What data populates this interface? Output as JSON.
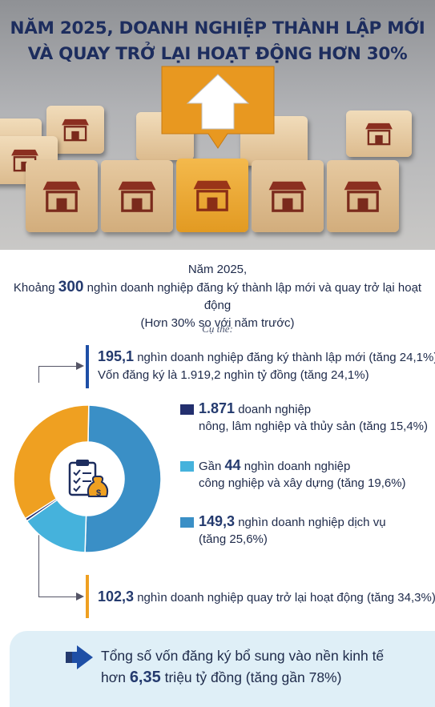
{
  "headline": {
    "line1": "NĂM 2025, DOANH NGHIỆP THÀNH LẬP MỚI",
    "line2": "VÀ QUAY TRỞ LẠI HOẠT ĐỘNG HƠN 30%"
  },
  "intro": {
    "line1": "Năm 2025,",
    "line2_prefix": "Khoảng ",
    "line2_number": "300",
    "line2_suffix": " nghìn doanh nghiệp đăng ký thành lập mới và quay trở lại hoạt động",
    "line3": "(Hơn 30% so với năm trước)",
    "detail_label": "Cụ thể:"
  },
  "new_enterprises": {
    "number": "195,1",
    "text": " nghìn doanh nghiệp đăng ký thành lập mới (tăng 24,1%)",
    "capital": "Vốn đăng ký là 1.919,2 nghìn tỷ đồng (tăng 24,1%)"
  },
  "returning": {
    "number": "102,3",
    "text": " nghìn doanh nghiệp quay trở lại hoạt động (tăng 34,3%)"
  },
  "footer": {
    "line1": "Tổng số vốn đăng ký bổ sung vào nền kinh tế",
    "line2_prefix": "hơn ",
    "line2_number": "6,35",
    "line2_suffix": " triệu tỷ đồng (tăng gần 78%)"
  },
  "chart_data": {
    "type": "pie",
    "unit": "nghìn doanh nghiệp",
    "total": 297.4,
    "series": [
      {
        "group": "new",
        "color": "#1e4fa6",
        "slices": [
          {
            "name": "agriculture",
            "value": 1.871,
            "color": "#232f6e",
            "line1_number": "1.871",
            "line1_text": " doanh nghiệp",
            "line2": "nông, lâm nghiệp và thủy sản (tăng 15,4%)"
          },
          {
            "name": "industry",
            "value": 44,
            "color": "#45b2dc",
            "line1_prefix": "Gần ",
            "line1_number": "44",
            "line1_text": " nghìn doanh nghiệp",
            "line2": "công nghiệp và xây dựng (tăng 19,6%)"
          },
          {
            "name": "services",
            "value": 149.3,
            "color": "#3a8fc6",
            "line1_number": "149,3",
            "line1_text": " nghìn doanh nghiệp dịch vụ",
            "line2": "(tăng 25,6%)"
          }
        ]
      },
      {
        "group": "returning",
        "color": "#efa021",
        "slices": [
          {
            "name": "returning",
            "value": 102.3,
            "color": "#efa021"
          }
        ]
      }
    ]
  },
  "colors": {
    "navy": "#1d2d5e",
    "orange": "#efa021",
    "blue": "#1e4fa6",
    "footer_bg": "#dfeff7"
  },
  "icons": [
    "house-up-arrow-icon",
    "shop-icon",
    "clipboard-money-bag-icon",
    "chevron-right-arrow-icon"
  ]
}
